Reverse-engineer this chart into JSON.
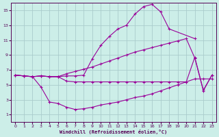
{
  "xlabel": "Windchill (Refroidissement éolien,°C)",
  "bg_color": "#cceee8",
  "grid_color": "#aacccc",
  "line_color": "#990099",
  "xlim": [
    -0.5,
    23.5
  ],
  "ylim": [
    0,
    16
  ],
  "xticks": [
    0,
    1,
    2,
    3,
    4,
    5,
    6,
    7,
    8,
    9,
    10,
    11,
    12,
    13,
    14,
    15,
    16,
    17,
    18,
    19,
    20,
    21,
    22,
    23
  ],
  "yticks": [
    1,
    3,
    5,
    7,
    9,
    11,
    13,
    15
  ],
  "s1_x": [
    0,
    1,
    2,
    3,
    4,
    5,
    6,
    7,
    8,
    9,
    10,
    11,
    12,
    13,
    14,
    15,
    16,
    17,
    18,
    19,
    20,
    21,
    22,
    23
  ],
  "s1_y": [
    6.3,
    6.2,
    6.1,
    4.7,
    2.7,
    2.5,
    2.0,
    1.7,
    1.8,
    2.0,
    2.3,
    2.5,
    2.7,
    3.0,
    3.3,
    3.5,
    3.8,
    4.2,
    4.6,
    5.0,
    5.4,
    5.8,
    5.8,
    5.8
  ],
  "s2_x": [
    0,
    1,
    2,
    3,
    4,
    5,
    6,
    7,
    8,
    9,
    10,
    11,
    12,
    13,
    14,
    15,
    16,
    17,
    18,
    19,
    20,
    21,
    22,
    23
  ],
  "s2_y": [
    6.3,
    6.2,
    6.1,
    6.2,
    6.1,
    6.1,
    5.5,
    5.4,
    5.4,
    5.4,
    5.4,
    5.4,
    5.4,
    5.4,
    5.4,
    5.4,
    5.4,
    5.4,
    5.4,
    5.4,
    5.4,
    8.7,
    4.3,
    6.3
  ],
  "s3_x": [
    0,
    1,
    2,
    3,
    4,
    5,
    6,
    7,
    8,
    9,
    10,
    11,
    12,
    13,
    14,
    15,
    16,
    17,
    18,
    21
  ],
  "s3_y": [
    6.3,
    6.2,
    6.1,
    6.2,
    6.1,
    6.1,
    6.2,
    6.2,
    6.3,
    8.5,
    10.3,
    11.5,
    12.5,
    13.0,
    14.5,
    15.5,
    15.8,
    14.8,
    12.5,
    11.2
  ],
  "s4_x": [
    0,
    1,
    2,
    3,
    4,
    5,
    6,
    7,
    8,
    9,
    10,
    11,
    12,
    13,
    14,
    15,
    16,
    17,
    18,
    19,
    20,
    21,
    22,
    23
  ],
  "s4_y": [
    6.3,
    6.2,
    6.1,
    6.2,
    6.1,
    6.1,
    6.5,
    6.8,
    7.1,
    7.4,
    7.8,
    8.2,
    8.6,
    9.0,
    9.4,
    9.7,
    10.0,
    10.3,
    10.6,
    10.9,
    11.2,
    8.6,
    4.2,
    6.3
  ]
}
